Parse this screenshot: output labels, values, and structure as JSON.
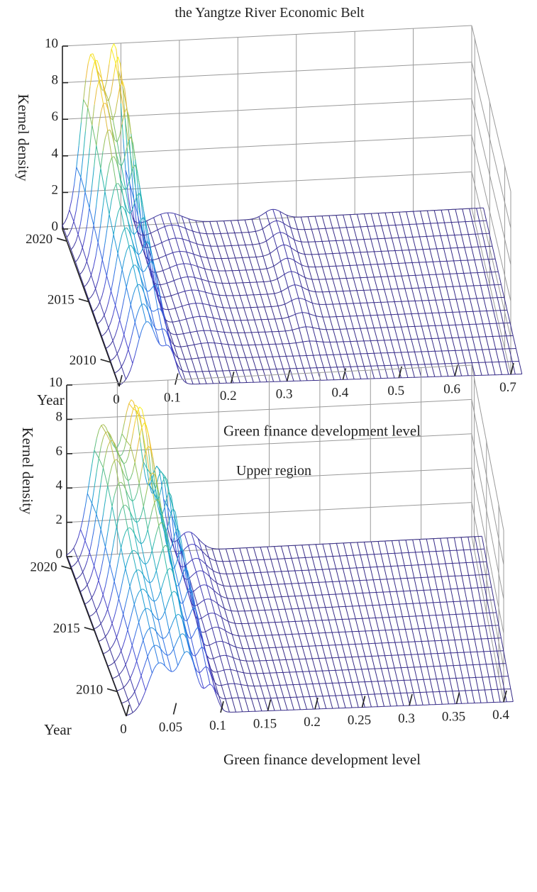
{
  "chart_data": [
    {
      "type": "surface",
      "title": "the Yangtze River Economic Belt",
      "xlabel": "Green finance development level",
      "ylabel": "Year",
      "zlabel": "Kernel density",
      "xlim": [
        0,
        0.7
      ],
      "ylim": [
        2008,
        2021
      ],
      "zlim": [
        0,
        10
      ],
      "x_ticks": [
        "0",
        "0.1",
        "0.2",
        "0.3",
        "0.4",
        "0.5",
        "0.6",
        "0.7"
      ],
      "y_ticks": [
        "2010",
        "2015",
        "2020"
      ],
      "z_ticks": [
        "0",
        "2",
        "4",
        "6",
        "8",
        "10"
      ],
      "years": [
        2008,
        2009,
        2010,
        2011,
        2012,
        2013,
        2014,
        2015,
        2016,
        2017,
        2018,
        2019,
        2020,
        2021
      ],
      "x_data_max": 0.72,
      "peaks": [
        {
          "x": 0.05,
          "width": 0.018,
          "heights": [
            3.5,
            3.8,
            4.2,
            4.6,
            5.0,
            5.3,
            5.8,
            6.4,
            7.2,
            8.0,
            8.8,
            9.4,
            9.8,
            9.5
          ]
        },
        {
          "x": 0.09,
          "width": 0.012,
          "heights": [
            1.8,
            2.0,
            2.4,
            3.0,
            3.6,
            4.0,
            4.6,
            5.2,
            6.0,
            6.8,
            7.6,
            8.4,
            9.0,
            9.2
          ]
        },
        {
          "x": 0.18,
          "width": 0.025,
          "heights": [
            0.0,
            0.0,
            0.1,
            0.2,
            0.2,
            0.3,
            0.35,
            0.4,
            0.45,
            0.5,
            0.5,
            0.55,
            0.6,
            0.6
          ]
        },
        {
          "x": 0.36,
          "width": 0.015,
          "heights": [
            0.0,
            0.0,
            0.0,
            0.1,
            0.2,
            0.3,
            0.4,
            0.45,
            0.5,
            0.55,
            0.6,
            0.6,
            0.55,
            0.5
          ]
        }
      ]
    },
    {
      "type": "surface",
      "title": "Upper region",
      "xlabel": "Green finance development level",
      "ylabel": "Year",
      "zlabel": "Kernel density",
      "xlim": [
        0,
        0.4
      ],
      "ylim": [
        2008,
        2021
      ],
      "zlim": [
        0,
        10
      ],
      "x_ticks": [
        "0",
        "0.05",
        "0.1",
        "0.15",
        "0.2",
        "0.25",
        "0.3",
        "0.35",
        "0.4"
      ],
      "y_ticks": [
        "2010",
        "2015",
        "2020"
      ],
      "z_ticks": [
        "0",
        "2",
        "4",
        "6",
        "8",
        "10"
      ],
      "years": [
        2008,
        2009,
        2010,
        2011,
        2012,
        2013,
        2014,
        2015,
        2016,
        2017,
        2018,
        2019,
        2020,
        2021
      ],
      "x_data_max": 0.41,
      "peaks": [
        {
          "x": 0.035,
          "width": 0.012,
          "heights": [
            3.0,
            3.3,
            3.6,
            4.0,
            4.4,
            4.8,
            5.2,
            5.8,
            6.4,
            7.0,
            7.6,
            8.0,
            7.8,
            7.5
          ]
        },
        {
          "x": 0.065,
          "width": 0.01,
          "heights": [
            3.5,
            3.8,
            4.2,
            4.8,
            5.4,
            6.0,
            6.6,
            7.2,
            8.0,
            8.8,
            9.4,
            9.6,
            9.0,
            8.6
          ]
        },
        {
          "x": 0.09,
          "width": 0.006,
          "heights": [
            1.5,
            1.8,
            2.2,
            2.6,
            3.0,
            3.4,
            3.8,
            4.2,
            4.6,
            5.0,
            5.2,
            5.4,
            5.0,
            4.6
          ]
        },
        {
          "x": 0.12,
          "width": 0.01,
          "heights": [
            0.0,
            0.1,
            0.2,
            0.3,
            0.4,
            0.5,
            0.6,
            0.7,
            0.8,
            0.9,
            1.0,
            1.0,
            1.1,
            1.1
          ]
        }
      ]
    }
  ]
}
